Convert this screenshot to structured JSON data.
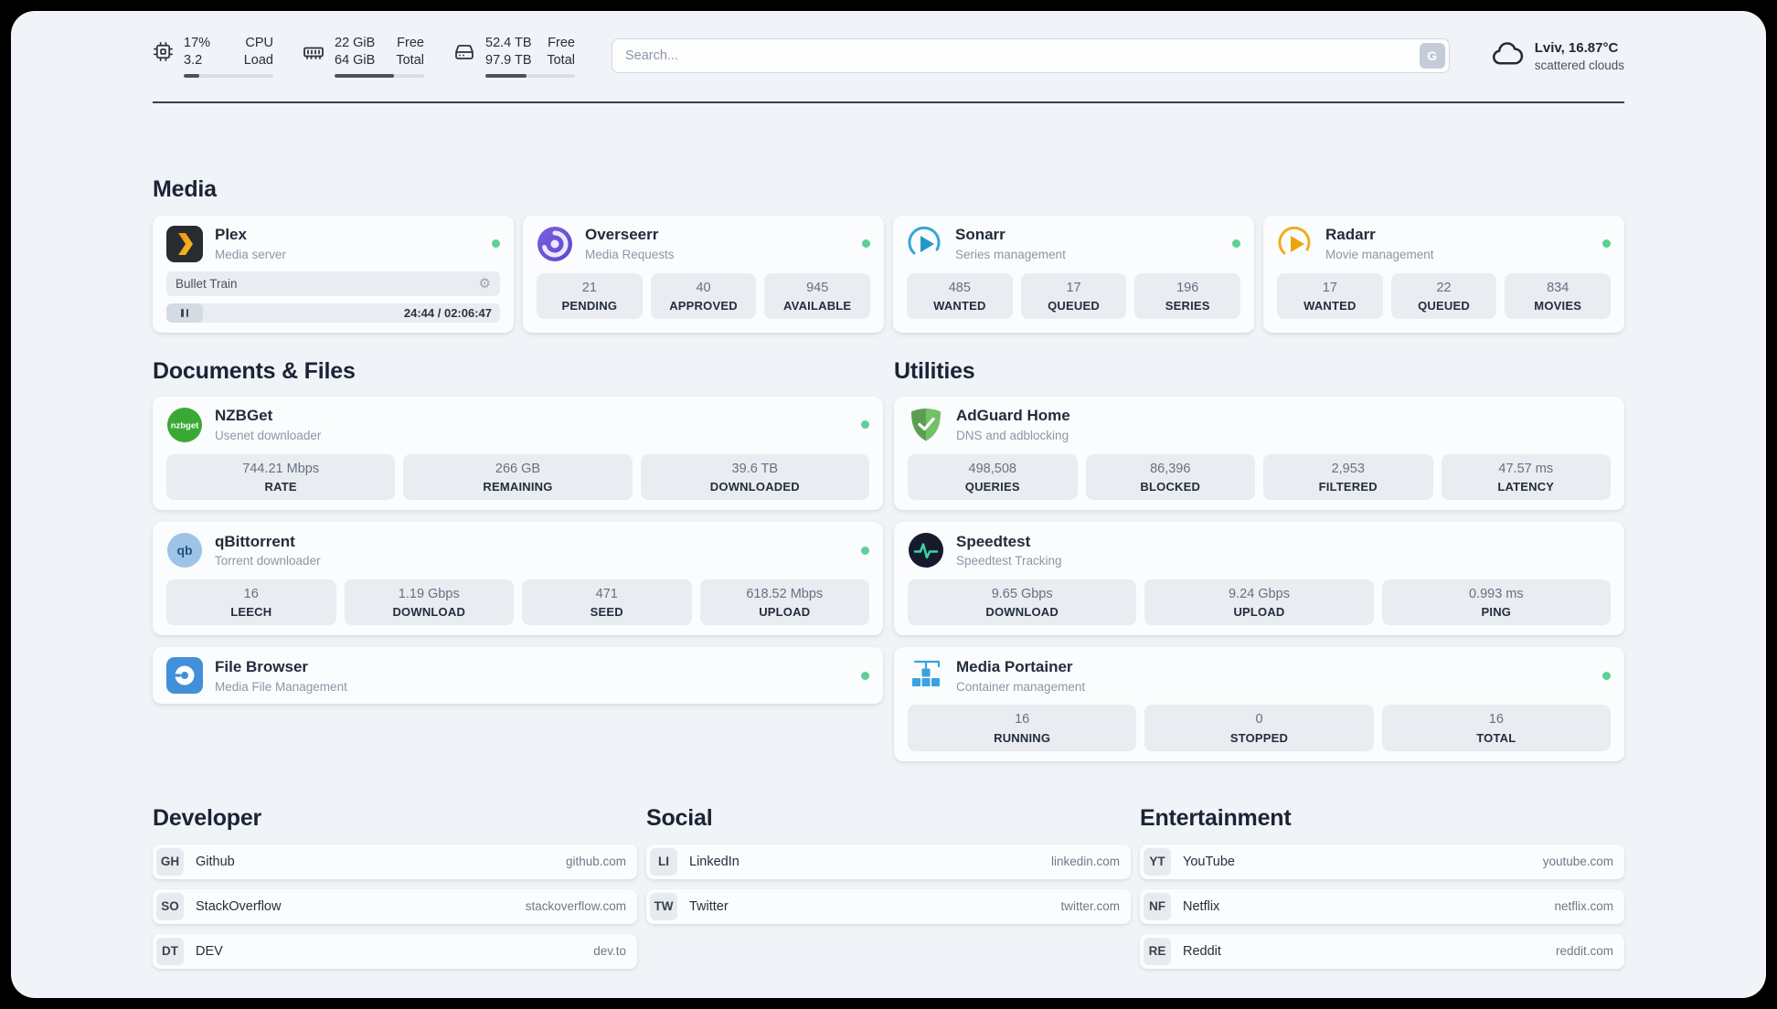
{
  "header": {
    "cpu": {
      "value_top": "17%",
      "value_bottom": "3.2",
      "label_top": "CPU",
      "label_bottom": "Load",
      "bar": 17
    },
    "ram": {
      "value_top": "22 GiB",
      "value_bottom": "64 GiB",
      "label_top": "Free",
      "label_bottom": "Total",
      "bar": 66
    },
    "disk": {
      "value_top": "52.4 TB",
      "value_bottom": "97.9 TB",
      "label_top": "Free",
      "label_bottom": "Total",
      "bar": 46
    },
    "search": {
      "placeholder": "Search...",
      "button_label": "G"
    },
    "weather": {
      "location": "Lviv, 16.87°C",
      "condition": "scattered clouds"
    }
  },
  "sections": {
    "media": "Media",
    "documents": "Documents & Files",
    "utilities": "Utilities",
    "developer": "Developer",
    "social": "Social",
    "entertainment": "Entertainment"
  },
  "apps": {
    "plex": {
      "name": "Plex",
      "desc": "Media server",
      "icon": "plex-chevron-icon",
      "now_playing": "Bullet Train",
      "time": "24:44 / 02:06:47"
    },
    "overseerr": {
      "name": "Overseerr",
      "desc": "Media Requests",
      "icon": "overseerr-swirl-icon",
      "stats": [
        {
          "value": "21",
          "label": "PENDING"
        },
        {
          "value": "40",
          "label": "APPROVED"
        },
        {
          "value": "945",
          "label": "AVAILABLE"
        }
      ]
    },
    "sonarr": {
      "name": "Sonarr",
      "desc": "Series management",
      "icon": "sonarr-play-icon",
      "stats": [
        {
          "value": "485",
          "label": "WANTED"
        },
        {
          "value": "17",
          "label": "QUEUED"
        },
        {
          "value": "196",
          "label": "SERIES"
        }
      ]
    },
    "radarr": {
      "name": "Radarr",
      "desc": "Movie management",
      "icon": "radarr-play-icon",
      "stats": [
        {
          "value": "17",
          "label": "WANTED"
        },
        {
          "value": "22",
          "label": "QUEUED"
        },
        {
          "value": "834",
          "label": "MOVIES"
        }
      ]
    },
    "nzbget": {
      "name": "NZBGet",
      "desc": "Usenet downloader",
      "icon": "nzbget-icon",
      "icon_text": "nzbget",
      "stats": [
        {
          "value": "744.21 Mbps",
          "label": "RATE"
        },
        {
          "value": "266 GB",
          "label": "REMAINING"
        },
        {
          "value": "39.6 TB",
          "label": "DOWNLOADED"
        }
      ]
    },
    "qbittorrent": {
      "name": "qBittorrent",
      "desc": "Torrent downloader",
      "icon": "qbittorrent-icon",
      "icon_text": "qb",
      "stats": [
        {
          "value": "16",
          "label": "LEECH"
        },
        {
          "value": "1.19 Gbps",
          "label": "DOWNLOAD"
        },
        {
          "value": "471",
          "label": "SEED"
        },
        {
          "value": "618.52 Mbps",
          "label": "UPLOAD"
        }
      ]
    },
    "filebrowser": {
      "name": "File Browser",
      "desc": "Media File Management",
      "icon": "filebrowser-icon"
    },
    "adguard": {
      "name": "AdGuard Home",
      "desc": "DNS and adblocking",
      "icon": "adguard-shield-icon",
      "stats": [
        {
          "value": "498,508",
          "label": "QUERIES"
        },
        {
          "value": "86,396",
          "label": "BLOCKED"
        },
        {
          "value": "2,953",
          "label": "FILTERED"
        },
        {
          "value": "47.57 ms",
          "label": "LATENCY"
        }
      ]
    },
    "speedtest": {
      "name": "Speedtest",
      "desc": "Speedtest Tracking",
      "icon": "speedtest-pulse-icon",
      "stats": [
        {
          "value": "9.65 Gbps",
          "label": "DOWNLOAD"
        },
        {
          "value": "9.24 Gbps",
          "label": "UPLOAD"
        },
        {
          "value": "0.993 ms",
          "label": "PING"
        }
      ]
    },
    "portainer": {
      "name": "Media Portainer",
      "desc": "Container management",
      "icon": "portainer-crane-icon",
      "stats": [
        {
          "value": "16",
          "label": "RUNNING"
        },
        {
          "value": "0",
          "label": "STOPPED"
        },
        {
          "value": "16",
          "label": "TOTAL"
        }
      ]
    }
  },
  "bookmarks": {
    "developer": [
      {
        "abbr": "GH",
        "name": "Github",
        "domain": "github.com"
      },
      {
        "abbr": "SO",
        "name": "StackOverflow",
        "domain": "stackoverflow.com"
      },
      {
        "abbr": "DT",
        "name": "DEV",
        "domain": "dev.to"
      }
    ],
    "social": [
      {
        "abbr": "LI",
        "name": "LinkedIn",
        "domain": "linkedin.com"
      },
      {
        "abbr": "TW",
        "name": "Twitter",
        "domain": "twitter.com"
      }
    ],
    "entertainment": [
      {
        "abbr": "YT",
        "name": "YouTube",
        "domain": "youtube.com"
      },
      {
        "abbr": "NF",
        "name": "Netflix",
        "domain": "netflix.com"
      },
      {
        "abbr": "RE",
        "name": "Reddit",
        "domain": "reddit.com"
      }
    ]
  },
  "colors": {
    "status_online": "#5ecf96",
    "page_background": "#f0f3f7",
    "card_background": "#fbfcfd",
    "tile_background": "#e9edf2"
  }
}
